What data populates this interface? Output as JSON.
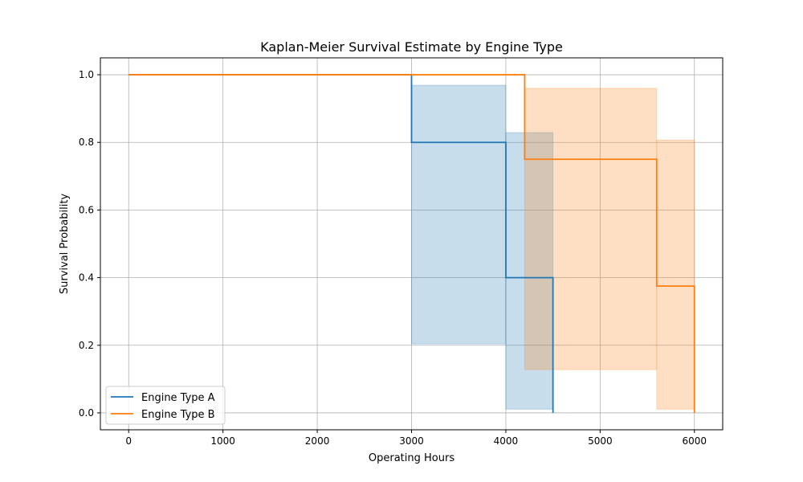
{
  "chart_data": {
    "type": "line",
    "title": "Kaplan-Meier Survival Estimate by Engine Type",
    "xlabel": "Operating Hours",
    "ylabel": "Survival Probability",
    "xlim": [
      -300,
      6300
    ],
    "ylim": [
      -0.05,
      1.05
    ],
    "xticks": [
      0,
      1000,
      2000,
      3000,
      4000,
      5000,
      6000
    ],
    "xtick_labels": [
      "0",
      "1000",
      "2000",
      "3000",
      "4000",
      "5000",
      "6000"
    ],
    "yticks": [
      0.0,
      0.2,
      0.4,
      0.6,
      0.8,
      1.0
    ],
    "ytick_labels": [
      "0.0",
      "0.2",
      "0.4",
      "0.6",
      "0.8",
      "1.0"
    ],
    "grid": true,
    "legend_position": "lower-left",
    "series": [
      {
        "name": "Engine Type A",
        "color": "#1f77b4",
        "step": "post",
        "x": [
          0,
          3000,
          4000,
          4500
        ],
        "y": [
          1.0,
          0.8,
          0.4,
          0.0
        ],
        "ci": [
          {
            "x0": 3000,
            "x1": 4000,
            "lower": 0.204,
            "upper": 0.969
          },
          {
            "x0": 4000,
            "x1": 4500,
            "lower": 0.011,
            "upper": 0.829
          }
        ]
      },
      {
        "name": "Engine Type B",
        "color": "#ff7f0e",
        "step": "post",
        "x": [
          0,
          4200,
          5600,
          6000
        ],
        "y": [
          1.0,
          0.75,
          0.375,
          0.0
        ],
        "ci": [
          {
            "x0": 4200,
            "x1": 5600,
            "lower": 0.128,
            "upper": 0.96
          },
          {
            "x0": 5600,
            "x1": 6000,
            "lower": 0.011,
            "upper": 0.807
          }
        ]
      }
    ]
  }
}
